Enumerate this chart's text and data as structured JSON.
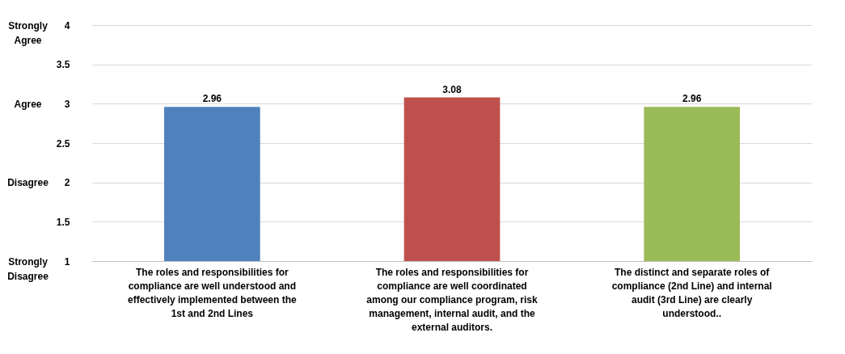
{
  "chart_data": {
    "type": "bar",
    "categories": [
      "The roles and responsibilities for compliance are well understood and effectively implemented between the 1st and 2nd Lines",
      "The roles and responsibilities for compliance are well coordinated among our compliance program, risk management, internal audit, and the external auditors.",
      "The distinct and separate roles of compliance (2nd Line) and internal audit (3rd Line) are clearly understood.."
    ],
    "values": [
      2.96,
      3.08,
      2.96
    ],
    "colors": [
      "#4f81bd",
      "#c0504d",
      "#9bbb59"
    ],
    "ylim": [
      1,
      4
    ],
    "yticks": [
      1,
      1.5,
      2,
      2.5,
      3,
      3.5,
      4
    ],
    "y2_categories": [
      "Strongly Agree",
      "Agree",
      "Disagree",
      "Strongly Disagree"
    ],
    "grid": "y",
    "data_labels": true
  }
}
